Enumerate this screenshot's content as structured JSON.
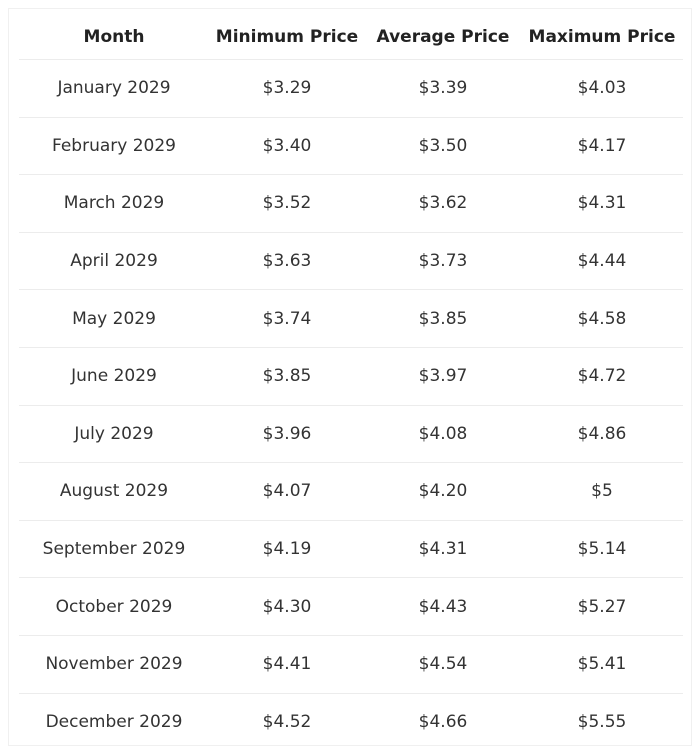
{
  "table": {
    "header": [
      "Month",
      "Minimum Price",
      "Average Price",
      "Maximum Price"
    ],
    "rows": [
      [
        "January 2029",
        "$3.29",
        "$3.39",
        "$4.03"
      ],
      [
        "February 2029",
        "$3.40",
        "$3.50",
        "$4.17"
      ],
      [
        "March 2029",
        "$3.52",
        "$3.62",
        "$4.31"
      ],
      [
        "April 2029",
        "$3.63",
        "$3.73",
        "$4.44"
      ],
      [
        "May 2029",
        "$3.74",
        "$3.85",
        "$4.58"
      ],
      [
        "June 2029",
        "$3.85",
        "$3.97",
        "$4.72"
      ],
      [
        "July 2029",
        "$3.96",
        "$4.08",
        "$4.86"
      ],
      [
        "August 2029",
        "$4.07",
        "$4.20",
        "$5"
      ],
      [
        "September 2029",
        "$4.19",
        "$4.31",
        "$5.14"
      ],
      [
        "October 2029",
        "$4.30",
        "$4.43",
        "$5.27"
      ],
      [
        "November 2029",
        "$4.41",
        "$4.54",
        "$5.41"
      ],
      [
        "December 2029",
        "$4.52",
        "$4.66",
        "$5.55"
      ]
    ]
  }
}
